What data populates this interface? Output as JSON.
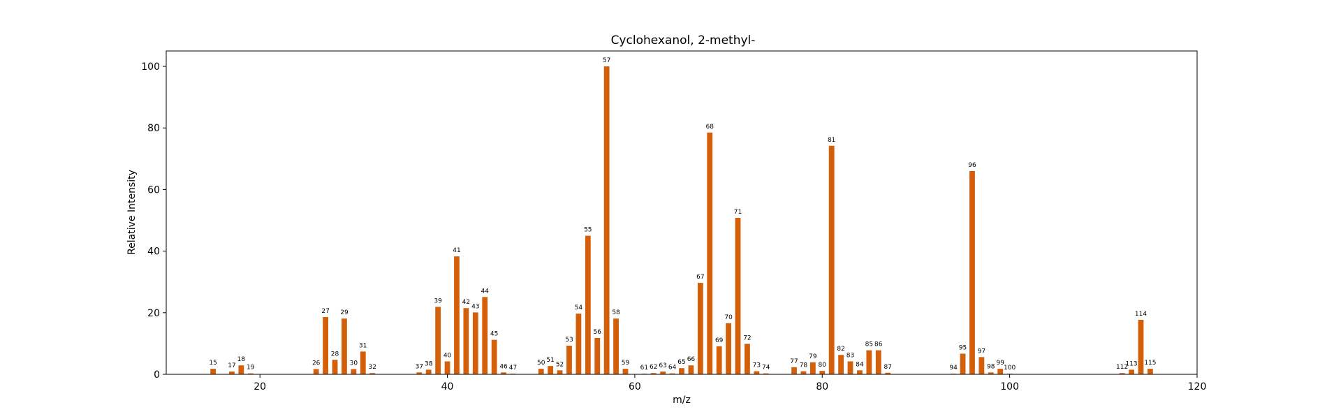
{
  "chart_data": {
    "type": "bar",
    "title": "Cyclohexanol, 2-methyl-",
    "xlabel": "m/z",
    "ylabel": "Relative Intensity",
    "xlim": [
      10,
      120
    ],
    "ylim": [
      0,
      105
    ],
    "xticks": [
      20,
      40,
      60,
      80,
      100,
      120
    ],
    "yticks": [
      0,
      20,
      40,
      60,
      80,
      100
    ],
    "bar_color": "#d45f0b",
    "grid": false,
    "x": [
      15,
      17,
      18,
      19,
      26,
      27,
      28,
      29,
      30,
      31,
      32,
      37,
      38,
      39,
      40,
      41,
      42,
      43,
      44,
      45,
      46,
      47,
      50,
      51,
      52,
      53,
      54,
      55,
      56,
      57,
      58,
      59,
      61,
      62,
      63,
      64,
      65,
      66,
      67,
      68,
      69,
      70,
      71,
      72,
      73,
      74,
      77,
      78,
      79,
      80,
      81,
      82,
      83,
      84,
      85,
      86,
      87,
      94,
      95,
      96,
      97,
      98,
      99,
      100,
      112,
      113,
      114,
      115
    ],
    "values": [
      1.8,
      0.9,
      2.9,
      0.3,
      1.7,
      18.6,
      4.7,
      18.1,
      1.7,
      7.4,
      0.4,
      0.6,
      1.5,
      21.9,
      4.2,
      38.3,
      21.5,
      20.1,
      25.1,
      11.2,
      0.6,
      0.2,
      1.8,
      2.7,
      1.3,
      9.3,
      19.7,
      45.0,
      11.8,
      100,
      18.1,
      1.8,
      0.2,
      0.4,
      0.9,
      0.3,
      2.0,
      2.9,
      29.7,
      78.5,
      9.1,
      16.6,
      50.8,
      9.9,
      1.0,
      0.3,
      2.3,
      1.0,
      3.9,
      1.1,
      74.2,
      6.3,
      4.2,
      1.3,
      7.8,
      7.8,
      0.5,
      0.2,
      6.7,
      66.0,
      5.6,
      0.6,
      1.8,
      0.2,
      0.4,
      1.5,
      17.7,
      1.8
    ],
    "labels": [
      "15",
      "17",
      "18",
      "19",
      "26",
      "27",
      "28",
      "29",
      "30",
      "31",
      "32",
      "37",
      "38",
      "39",
      "40",
      "41",
      "42",
      "43",
      "44",
      "45",
      "46",
      "47",
      "50",
      "51",
      "52",
      "53",
      "54",
      "55",
      "56",
      "57",
      "58",
      "59",
      "61",
      "62",
      "63",
      "64",
      "65",
      "66",
      "67",
      "68",
      "69",
      "70",
      "71",
      "72",
      "73",
      "74",
      "77",
      "78",
      "79",
      "80",
      "81",
      "82",
      "83",
      "84",
      "85",
      "86",
      "87",
      "94",
      "95",
      "96",
      "97",
      "98",
      "99",
      "100",
      "112",
      "113",
      "114",
      "115"
    ]
  }
}
